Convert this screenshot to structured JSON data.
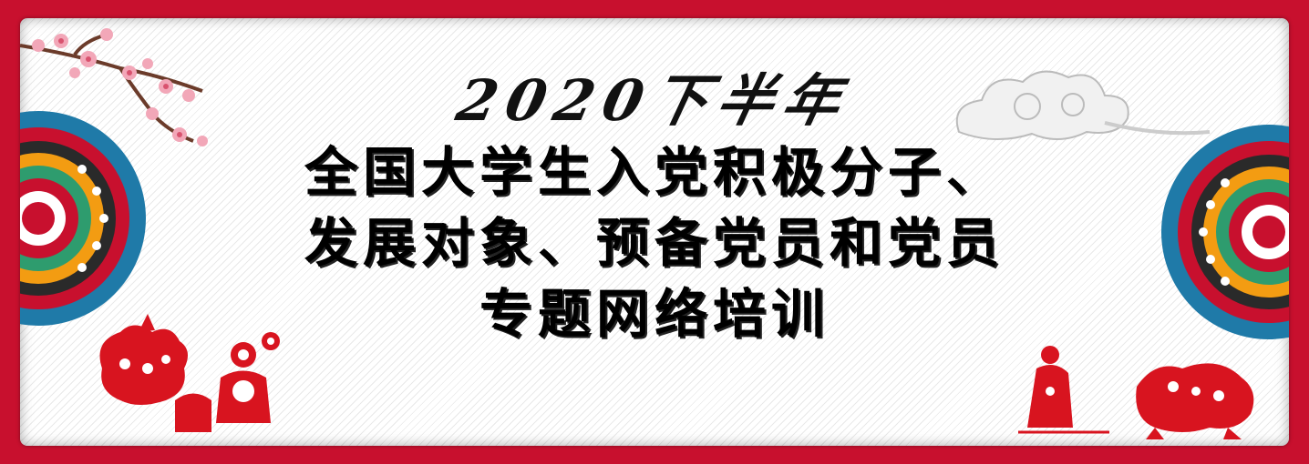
{
  "banner": {
    "subtitle": "2020下半年",
    "title_lines": [
      "全国大学生入党积极分子、",
      "发展对象、预备党员和党员",
      "专题网络培训"
    ]
  },
  "colors": {
    "frame": "#c8102e",
    "background": "#ffffff",
    "text": "#000000",
    "papercut": "#d8141f",
    "blossom": "#f2a7b8"
  },
  "decorations": {
    "top_left": "plum-blossom-branch-icon",
    "top_right": "auspicious-cloud-icon",
    "left": "mandala-flower-icon",
    "right": "mandala-flower-icon",
    "bottom_left": "paper-cut-rooster-children-icon",
    "bottom_right": "paper-cut-lion-dance-icon"
  }
}
